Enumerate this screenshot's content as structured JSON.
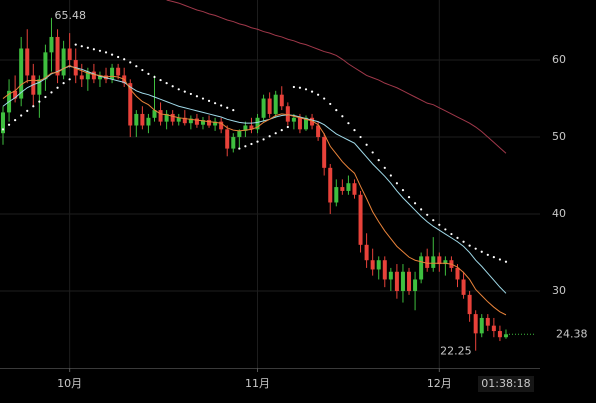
{
  "chart_data": {
    "type": "candlestick",
    "categories": [
      null,
      null,
      null,
      null,
      null,
      null,
      null,
      null,
      null,
      null,
      null,
      "10月",
      null,
      null,
      null,
      null,
      null,
      null,
      null,
      null,
      null,
      null,
      null,
      null,
      null,
      null,
      null,
      null,
      null,
      null,
      null,
      null,
      null,
      null,
      null,
      null,
      null,
      null,
      null,
      null,
      null,
      null,
      "11月",
      null,
      null,
      null,
      null,
      null,
      null,
      null,
      null,
      null,
      null,
      null,
      null,
      null,
      null,
      null,
      null,
      null,
      null,
      null,
      null,
      null,
      null,
      null,
      null,
      null,
      null,
      null,
      null,
      null,
      "12月",
      null,
      null,
      null,
      null,
      null,
      null,
      null,
      null,
      null,
      null,
      null
    ],
    "candles": {
      "open": [
        50.5,
        53.2,
        56.0,
        55.0,
        61.5,
        58.0,
        55.5,
        57.5,
        61.0,
        63.0,
        58.0,
        61.5,
        60.0,
        58.0,
        57.5,
        58.5,
        57.5,
        58.0,
        57.5,
        59.0,
        58.0,
        57.0,
        51.5,
        53.0,
        51.5,
        52.5,
        53.5,
        52.0,
        53.0,
        52.0,
        52.5,
        51.8,
        52.4,
        51.6,
        52.2,
        51.5,
        52.0,
        51.0,
        48.5,
        50.0,
        50.8,
        51.5,
        51.0,
        52.5,
        55.0,
        53.0,
        55.5,
        54.0,
        52.0,
        52.5,
        51.0,
        52.5,
        51.5,
        50.0,
        46.0,
        41.5,
        43.5,
        43.0,
        44.0,
        42.5,
        36.0,
        34.0,
        32.8,
        34.0,
        31.5,
        32.5,
        30.0,
        32.5,
        30.0,
        31.5,
        34.5,
        33.0,
        34.5,
        33.5,
        34.0,
        33.0,
        31.5,
        29.5,
        27.0,
        24.5,
        26.5,
        25.5,
        24.8,
        24.0
      ],
      "high": [
        54.0,
        57.5,
        58.0,
        63.0,
        64.0,
        59.5,
        58.0,
        62.0,
        65.48,
        64.0,
        62.5,
        63.5,
        61.5,
        59.5,
        59.0,
        59.5,
        58.5,
        59.0,
        59.5,
        59.5,
        59.0,
        57.5,
        53.5,
        54.0,
        53.0,
        58.0,
        54.5,
        53.5,
        53.5,
        53.0,
        53.5,
        52.8,
        53.0,
        52.6,
        52.8,
        52.5,
        52.5,
        51.5,
        50.5,
        51.0,
        52.0,
        52.5,
        53.0,
        55.5,
        55.8,
        56.0,
        56.6,
        54.5,
        53.0,
        53.0,
        52.8,
        53.0,
        52.0,
        50.5,
        46.5,
        44.5,
        44.5,
        45.0,
        44.5,
        43.0,
        37.5,
        35.5,
        34.5,
        34.5,
        33.0,
        33.5,
        33.5,
        33.0,
        32.5,
        35.0,
        35.5,
        37.0,
        35.0,
        34.5,
        34.5,
        33.5,
        32.5,
        30.0,
        27.5,
        27.0,
        27.0,
        26.5,
        25.5,
        25.0
      ],
      "low": [
        49.0,
        52.0,
        54.5,
        54.0,
        57.0,
        54.0,
        52.5,
        56.0,
        58.5,
        57.0,
        57.5,
        59.0,
        57.0,
        56.5,
        56.0,
        57.0,
        56.5,
        57.0,
        57.0,
        57.5,
        56.5,
        50.0,
        50.0,
        51.0,
        50.5,
        52.0,
        51.5,
        51.0,
        51.5,
        51.5,
        51.5,
        51.0,
        51.2,
        51.0,
        51.2,
        50.8,
        50.5,
        47.5,
        48.0,
        48.5,
        50.0,
        50.5,
        50.5,
        52.0,
        52.5,
        52.5,
        53.5,
        51.5,
        51.0,
        50.5,
        50.8,
        51.0,
        49.5,
        45.0,
        40.0,
        41.0,
        42.5,
        42.5,
        42.0,
        35.0,
        33.0,
        32.0,
        31.5,
        30.5,
        30.0,
        29.0,
        28.5,
        29.5,
        27.5,
        31.0,
        32.5,
        32.5,
        32.5,
        32.0,
        32.5,
        30.5,
        29.0,
        26.0,
        22.25,
        24.0,
        24.8,
        24.0,
        23.5,
        23.8
      ],
      "close": [
        53.2,
        56.0,
        55.0,
        61.5,
        58.0,
        55.5,
        57.5,
        61.0,
        63.0,
        58.0,
        61.5,
        60.0,
        58.0,
        57.5,
        58.5,
        57.5,
        58.0,
        57.5,
        59.0,
        58.0,
        57.0,
        51.5,
        53.0,
        51.5,
        52.5,
        53.5,
        52.0,
        53.0,
        52.0,
        52.5,
        51.8,
        52.4,
        51.6,
        52.2,
        51.5,
        52.0,
        51.0,
        48.5,
        50.0,
        50.8,
        51.5,
        51.0,
        52.5,
        55.0,
        53.0,
        55.5,
        54.0,
        52.0,
        52.5,
        51.0,
        52.5,
        51.5,
        50.0,
        46.0,
        41.5,
        43.5,
        43.0,
        44.0,
        42.5,
        36.0,
        34.0,
        32.8,
        34.0,
        31.5,
        32.5,
        30.0,
        32.5,
        30.0,
        31.5,
        34.5,
        33.0,
        34.5,
        33.5,
        34.0,
        33.0,
        31.5,
        29.5,
        27.0,
        24.5,
        26.5,
        25.5,
        24.8,
        24.0,
        24.38
      ]
    },
    "up_color": "#3fbf3f",
    "down_color": "#e8423a",
    "overlays": [
      {
        "style": "line",
        "color": "#a0384a",
        "values": [
          null,
          null,
          null,
          null,
          null,
          null,
          null,
          null,
          null,
          null,
          null,
          null,
          null,
          null,
          null,
          null,
          null,
          null,
          null,
          null,
          null,
          null,
          null,
          null,
          null,
          null,
          null,
          67.8,
          67.6,
          67.4,
          67.1,
          66.8,
          66.5,
          66.3,
          66.0,
          65.8,
          65.5,
          65.2,
          65.0,
          64.7,
          64.5,
          64.2,
          64.0,
          63.7,
          63.5,
          63.2,
          63.0,
          62.7,
          62.5,
          62.2,
          62.0,
          61.7,
          61.4,
          61.1,
          60.9,
          60.6,
          60.1,
          59.5,
          59.0,
          58.5,
          58.0,
          57.7,
          57.4,
          57.0,
          56.7,
          56.4,
          56.0,
          55.6,
          55.2,
          54.8,
          54.4,
          54.2,
          53.8,
          53.4,
          53.0,
          52.6,
          52.2,
          51.8,
          51.3,
          50.7,
          50.0,
          49.3,
          48.6,
          47.9
        ]
      },
      {
        "style": "line",
        "color": "#9fd9e8",
        "values": [
          54.0,
          54.6,
          55.1,
          55.8,
          56.4,
          56.8,
          57.1,
          57.6,
          58.2,
          58.5,
          58.9,
          59.2,
          59.0,
          58.8,
          58.5,
          58.2,
          57.9,
          57.7,
          57.5,
          57.3,
          57.1,
          56.5,
          56.0,
          55.7,
          55.5,
          55.2,
          54.9,
          54.6,
          54.3,
          54.0,
          53.8,
          53.6,
          53.4,
          53.2,
          53.0,
          52.8,
          52.6,
          52.3,
          52.1,
          51.9,
          51.8,
          51.8,
          51.9,
          52.1,
          52.3,
          52.6,
          52.8,
          52.9,
          52.8,
          52.6,
          52.4,
          52.2,
          52.0,
          51.6,
          51.0,
          50.4,
          50.0,
          49.6,
          49.2,
          48.3,
          47.4,
          46.5,
          45.7,
          44.9,
          44.0,
          43.0,
          42.1,
          41.3,
          40.5,
          39.7,
          39.0,
          38.4,
          37.9,
          37.4,
          36.9,
          36.4,
          35.8,
          35.0,
          34.0,
          33.2,
          32.3,
          31.4,
          30.5,
          29.7
        ]
      },
      {
        "style": "line",
        "color": "#e8833a",
        "values": [
          55.0,
          55.6,
          56.0,
          56.8,
          57.3,
          57.4,
          57.3,
          57.7,
          58.3,
          58.4,
          58.9,
          59.3,
          58.9,
          58.6,
          58.3,
          58.1,
          58.0,
          57.8,
          57.9,
          57.8,
          57.5,
          56.2,
          55.3,
          54.6,
          54.2,
          53.5,
          53.0,
          52.9,
          52.7,
          52.5,
          52.4,
          52.3,
          52.2,
          52.1,
          52.0,
          51.9,
          51.8,
          51.2,
          50.9,
          50.8,
          50.9,
          51.0,
          51.3,
          51.9,
          52.3,
          52.8,
          53.0,
          52.9,
          52.7,
          52.5,
          52.3,
          52.1,
          51.6,
          50.4,
          48.8,
          47.8,
          46.8,
          46.0,
          45.3,
          43.6,
          42.0,
          40.3,
          39.0,
          37.8,
          36.8,
          35.8,
          35.1,
          34.4,
          34.0,
          33.8,
          33.6,
          33.6,
          33.6,
          33.6,
          33.5,
          33.1,
          32.4,
          31.5,
          30.2,
          29.4,
          28.6,
          27.9,
          27.3,
          26.9
        ]
      },
      {
        "style": "dots",
        "color": "#ffffff",
        "values": [
          51.0,
          51.6,
          52.2,
          52.8,
          53.4,
          54.0,
          54.6,
          55.2,
          55.8,
          56.4,
          57.0,
          57.5,
          62.0,
          61.8,
          61.6,
          61.4,
          61.2,
          61.0,
          60.7,
          60.4,
          60.1,
          59.7,
          59.2,
          58.7,
          58.2,
          57.8,
          57.4,
          57.0,
          56.6,
          56.2,
          55.9,
          55.6,
          55.3,
          55.0,
          54.7,
          54.4,
          54.1,
          53.8,
          53.5,
          48.5,
          48.8,
          49.1,
          49.4,
          49.7,
          50.1,
          50.5,
          50.9,
          51.3,
          56.5,
          56.4,
          56.2,
          55.9,
          55.5,
          55.0,
          54.3,
          53.5,
          52.7,
          51.8,
          50.9,
          50.0,
          49.0,
          48.0,
          47.0,
          46.0,
          45.0,
          44.0,
          43.1,
          42.2,
          41.4,
          40.6,
          39.9,
          39.2,
          38.6,
          38.0,
          37.4,
          36.9,
          36.4,
          35.9,
          35.5,
          35.1,
          34.7,
          34.4,
          34.1,
          33.8
        ]
      }
    ],
    "ylim": [
      20,
      67.8
    ],
    "yticks": [
      30,
      40,
      50,
      60
    ],
    "grid": true,
    "time_label": "01:38:18"
  }
}
